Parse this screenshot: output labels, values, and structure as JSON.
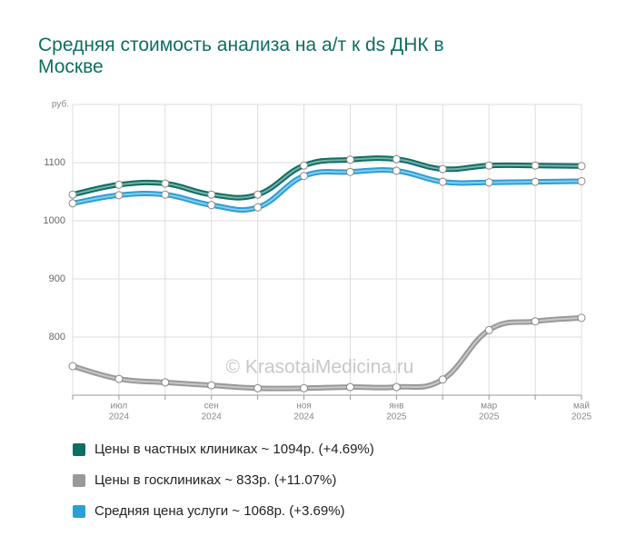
{
  "chart_data": {
    "type": "line",
    "title": "Средняя стоимость анализа на а/т к ds ДНК в Москве",
    "y_label": "руб.",
    "watermark": "© KrasotaiMedicina.ru",
    "categories": [
      null,
      [
        "июл",
        "2024"
      ],
      null,
      [
        "сен",
        "2024"
      ],
      null,
      [
        "ноя",
        "2024"
      ],
      null,
      [
        "янв",
        "2025"
      ],
      null,
      [
        "мар",
        "2025"
      ],
      null,
      [
        "май",
        "2025"
      ]
    ],
    "series": [
      {
        "name": "Цены в частных клиниках ~ 1094р. (+4.69%)",
        "color": "#0e6e62",
        "values": [
          1045,
          1062,
          1064,
          1045,
          1045,
          1095,
          1105,
          1106,
          1089,
          1095,
          1095,
          1094
        ]
      },
      {
        "name": "Цены в госклиниках ~ 833р. (+11.07%)",
        "color": "#999999",
        "values": [
          750,
          728,
          722,
          717,
          712,
          712,
          714,
          714,
          727,
          812,
          827,
          833
        ]
      },
      {
        "name": "Средняя цена услуги ~ 1068р. (+3.69%)",
        "color": "#2a9fd6",
        "values": [
          1030,
          1044,
          1045,
          1027,
          1023,
          1077,
          1084,
          1086,
          1067,
          1066,
          1067,
          1068
        ]
      }
    ],
    "ylim": [
      700,
      1200
    ],
    "yticks": [
      800,
      900,
      1000,
      1100
    ],
    "grid": true
  }
}
